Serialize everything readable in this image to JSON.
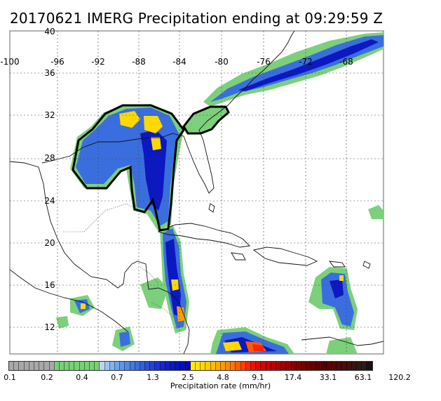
{
  "title": "20170621 IMERG Precipitation ending at 09:29:59 Z",
  "map": {
    "lon_labels": [
      "-100",
      "-96",
      "-92",
      "-88",
      "-84",
      "-80",
      "-76",
      "-72",
      "-68"
    ],
    "lat_labels": [
      "40",
      "36",
      "32",
      "28",
      "24",
      "20",
      "16",
      "12"
    ]
  },
  "legend": {
    "title": "Precipitation rate (mm/hr)",
    "tick_labels": [
      "0.1",
      "0.2",
      "0.4",
      "0.7",
      "1.3",
      "2.5",
      "4.8",
      "9.1",
      "17.4",
      "33.1",
      "63.1",
      "120.2"
    ],
    "colors": [
      "#a8a8a8",
      "#a8a8a8",
      "#a8a8a8",
      "#a8a8a8",
      "#a8a8a8",
      "#a8a8a8",
      "#a8a8a8",
      "#a8a8a8",
      "#a8a8a8",
      "#76d276",
      "#76d276",
      "#76d276",
      "#76d276",
      "#76d276",
      "#76d276",
      "#76d276",
      "#76d276",
      "#76d276",
      "#bcd4f4",
      "#9fc4f0",
      "#85b4ec",
      "#6ea6ea",
      "#5d98e8",
      "#4f8ae4",
      "#417be0",
      "#3a6ede",
      "#3160da",
      "#2a50d8",
      "#2342d6",
      "#1c34d4",
      "#1628cc",
      "#1020c8",
      "#0c18c0",
      "#0814bc",
      "#0610b4",
      "#040cae",
      "#ffee00",
      "#ffe400",
      "#ffd800",
      "#ffcc00",
      "#ffbc00",
      "#ffac00",
      "#ff9a00",
      "#ff8800",
      "#ff7600",
      "#ff5c00",
      "#ff4000",
      "#ff2400",
      "#f01000",
      "#e00a00",
      "#d40600",
      "#c80400",
      "#bc0200",
      "#b00000",
      "#a00000",
      "#960000",
      "#8c0000",
      "#820000",
      "#780000",
      "#6e0000",
      "#640000",
      "#5a0000",
      "#500000",
      "#600000",
      "#580404",
      "#500808",
      "#480c0c",
      "#401010",
      "#381414",
      "#301818",
      "#281c1c",
      "#201010"
    ]
  }
}
